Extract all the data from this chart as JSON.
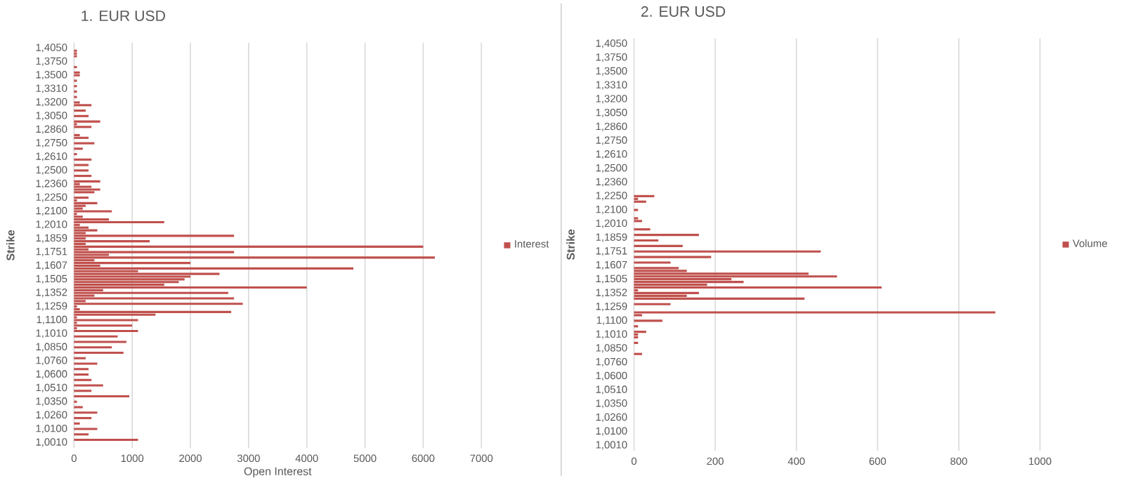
{
  "chart_data": [
    {
      "type": "bar",
      "orientation": "horizontal",
      "title": "1. EUR USD",
      "ylabel": "Strike",
      "xlabel": "Open Interest",
      "categories": [
        "1,4050",
        null,
        null,
        null,
        null,
        "1,3750",
        null,
        null,
        null,
        null,
        "1,3500",
        null,
        null,
        null,
        null,
        "1,3310",
        null,
        null,
        null,
        null,
        "1,3200",
        null,
        null,
        null,
        null,
        "1,3050",
        null,
        null,
        null,
        null,
        "1,2860",
        null,
        null,
        null,
        null,
        "1,2750",
        null,
        null,
        null,
        null,
        "1,2610",
        null,
        null,
        null,
        null,
        "1,2500",
        null,
        null,
        null,
        null,
        "1,2360",
        null,
        null,
        null,
        null,
        "1,2250",
        null,
        null,
        null,
        null,
        "1,2100",
        null,
        null,
        null,
        null,
        "1,2010",
        null,
        null,
        null,
        null,
        "1,1859",
        null,
        null,
        null,
        null,
        "1,1751",
        null,
        null,
        null,
        null,
        "1,1607",
        null,
        null,
        null,
        null,
        "1,1505",
        null,
        null,
        null,
        null,
        "1,1352",
        null,
        null,
        null,
        null,
        "1,1259",
        null,
        null,
        null,
        null,
        "1,1100",
        null,
        null,
        null,
        null,
        "1,1010",
        null,
        null,
        null,
        null,
        "1,0850",
        null,
        null,
        null,
        null,
        "1,0760",
        null,
        null,
        null,
        null,
        "1,0600",
        null,
        null,
        null,
        null,
        "1,0510",
        null,
        null,
        null,
        null,
        "1,0350",
        null,
        null,
        null,
        null,
        "1,0260",
        null,
        null,
        null,
        null,
        "1,0100",
        null,
        null,
        null,
        null,
        "1,0010"
      ],
      "series": [
        {
          "name": "Interest",
          "color": "#c0504d",
          "values": [
            0,
            50,
            50,
            50,
            0,
            0,
            0,
            50,
            0,
            100,
            100,
            0,
            50,
            0,
            50,
            0,
            50,
            0,
            50,
            0,
            100,
            300,
            0,
            200,
            0,
            250,
            0,
            450,
            50,
            300,
            0,
            0,
            100,
            250,
            0,
            350,
            0,
            150,
            0,
            50,
            0,
            300,
            0,
            250,
            0,
            250,
            0,
            300,
            0,
            450,
            100,
            300,
            450,
            350,
            0,
            250,
            50,
            400,
            200,
            150,
            650,
            50,
            150,
            600,
            1550,
            100,
            250,
            400,
            200,
            2750,
            200,
            1300,
            200,
            6000,
            250,
            2750,
            600,
            6200,
            350,
            2000,
            450,
            4800,
            1100,
            2500,
            2000,
            1900,
            1800,
            1550,
            4000,
            500,
            2650,
            350,
            2750,
            200,
            2900,
            50,
            100,
            2700,
            1400,
            50,
            1100,
            50,
            1000,
            50,
            1100,
            0,
            750,
            0,
            900,
            0,
            650,
            0,
            850,
            0,
            200,
            0,
            400,
            0,
            250,
            0,
            250,
            0,
            300,
            0,
            500,
            0,
            300,
            0,
            950,
            0,
            50,
            0,
            150,
            0,
            400,
            0,
            300,
            0,
            100,
            0,
            400,
            0,
            250,
            0,
            1100,
            0
          ]
        }
      ],
      "xlim": [
        0,
        7000
      ],
      "xticks": [
        0,
        1000,
        2000,
        3000,
        4000,
        5000,
        6000,
        7000
      ],
      "grid": "x",
      "legend": "right"
    },
    {
      "type": "bar",
      "orientation": "horizontal",
      "title": "2. EUR USD",
      "ylabel": "Strike",
      "categories": [
        "1,4050",
        null,
        null,
        null,
        null,
        "1,3750",
        null,
        null,
        null,
        null,
        "1,3500",
        null,
        null,
        null,
        null,
        "1,3310",
        null,
        null,
        null,
        null,
        "1,3200",
        null,
        null,
        null,
        null,
        "1,3050",
        null,
        null,
        null,
        null,
        "1,2860",
        null,
        null,
        null,
        null,
        "1,2750",
        null,
        null,
        null,
        null,
        "1,2610",
        null,
        null,
        null,
        null,
        "1,2500",
        null,
        null,
        null,
        null,
        "1,2360",
        null,
        null,
        null,
        null,
        "1,2250",
        null,
        null,
        null,
        null,
        "1,2100",
        null,
        null,
        null,
        null,
        "1,2010",
        null,
        null,
        null,
        null,
        "1,1859",
        null,
        null,
        null,
        null,
        "1,1751",
        null,
        null,
        null,
        null,
        "1,1607",
        null,
        null,
        null,
        null,
        "1,1505",
        null,
        null,
        null,
        null,
        "1,1352",
        null,
        null,
        null,
        null,
        "1,1259",
        null,
        null,
        null,
        null,
        "1,1100",
        null,
        null,
        null,
        null,
        "1,1010",
        null,
        null,
        null,
        null,
        "1,0850",
        null,
        null,
        null,
        null,
        "1,0760",
        null,
        null,
        null,
        null,
        "1,0600",
        null,
        null,
        null,
        null,
        "1,0510",
        null,
        null,
        null,
        null,
        "1,0350",
        null,
        null,
        null,
        null,
        "1,0260",
        null,
        null,
        null,
        null,
        "1,0100",
        null,
        null,
        null,
        null,
        "1,0010"
      ],
      "series": [
        {
          "name": "Volume",
          "color": "#c0504d",
          "values": [
            0,
            0,
            0,
            0,
            0,
            0,
            0,
            0,
            0,
            0,
            0,
            0,
            0,
            0,
            0,
            0,
            0,
            0,
            0,
            0,
            0,
            0,
            0,
            0,
            0,
            0,
            0,
            0,
            0,
            0,
            0,
            0,
            0,
            0,
            0,
            0,
            0,
            0,
            0,
            0,
            0,
            0,
            0,
            0,
            0,
            0,
            0,
            0,
            0,
            0,
            0,
            0,
            0,
            0,
            0,
            50,
            10,
            30,
            0,
            0,
            10,
            0,
            0,
            10,
            20,
            0,
            0,
            40,
            0,
            160,
            0,
            60,
            0,
            120,
            0,
            460,
            0,
            190,
            0,
            90,
            0,
            110,
            130,
            430,
            500,
            240,
            270,
            180,
            610,
            10,
            160,
            130,
            420,
            0,
            90,
            0,
            0,
            890,
            20,
            0,
            70,
            0,
            10,
            0,
            30,
            10,
            10,
            0,
            10,
            0,
            0,
            0,
            20,
            0,
            0,
            0,
            0,
            0,
            0,
            0,
            0,
            0,
            0,
            0,
            0,
            0,
            0,
            0,
            0,
            0,
            0,
            0,
            0,
            0,
            0,
            0,
            0,
            0,
            0,
            0,
            0,
            0,
            0,
            0,
            0,
            0
          ]
        }
      ],
      "xlim": [
        0,
        1000
      ],
      "xticks": [
        0,
        200,
        400,
        600,
        800,
        1000
      ],
      "grid": "x",
      "legend": "right"
    }
  ]
}
